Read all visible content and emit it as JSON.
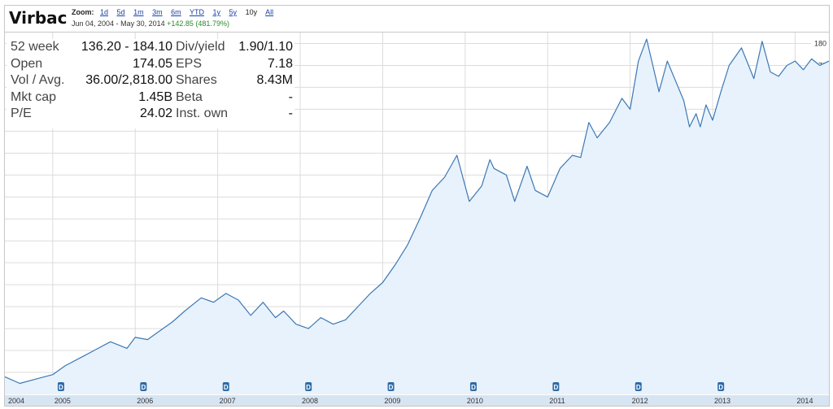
{
  "header": {
    "company": "Virbac",
    "zoom_label": "Zoom:",
    "zoom_options": [
      "1d",
      "5d",
      "1m",
      "3m",
      "6m",
      "YTD",
      "1y",
      "5y",
      "10y",
      "All"
    ],
    "zoom_selected": "10y",
    "date_start": "Jun 04, 2004",
    "date_sep": "-",
    "date_end": "May 30, 2014",
    "change": "+142.85 (481.79%)"
  },
  "stats": [
    {
      "label1": "52 week",
      "value1": "136.20 - 184.10",
      "label2": "Div/yield",
      "value2": "1.90/1.10"
    },
    {
      "label1": "Open",
      "value1": "174.05",
      "label2": "EPS",
      "value2": "7.18"
    },
    {
      "label1": "Vol / Avg.",
      "value1": "36.00/2,818.00",
      "label2": "Shares",
      "value2": "8.43M"
    },
    {
      "label1": "Mkt cap",
      "value1": "1.45B",
      "label2": "Beta",
      "value2": "-"
    },
    {
      "label1": "P/E",
      "value1": "24.02",
      "label2": "Inst. own",
      "value2": "-"
    }
  ],
  "colors": {
    "line": "#3c78b4",
    "fill": "#e8f2fc",
    "grid": "#dcdcdc",
    "marker": "#2d6aa8",
    "axisband": "#d7e4f2"
  },
  "chart_data": {
    "type": "area",
    "title": "",
    "xlabel": "",
    "ylabel": "",
    "xlim": [
      2004.42,
      2014.41
    ],
    "ylim": [
      20,
      185
    ],
    "yticks": [
      30,
      40,
      50,
      60,
      70,
      80,
      90,
      100,
      110,
      120,
      130,
      140,
      150,
      160,
      170,
      180
    ],
    "xticks": [
      "2004",
      "2005",
      "2006",
      "2007",
      "2008",
      "2009",
      "2010",
      "2011",
      "2012",
      "2013",
      "2014"
    ],
    "grid": true,
    "dividend_markers": [
      {
        "x": 2005.1,
        "label": "D"
      },
      {
        "x": 2006.1,
        "label": "D"
      },
      {
        "x": 2007.1,
        "label": "D"
      },
      {
        "x": 2008.1,
        "label": "D"
      },
      {
        "x": 2009.1,
        "label": "D"
      },
      {
        "x": 2010.1,
        "label": "D"
      },
      {
        "x": 2011.1,
        "label": "D"
      },
      {
        "x": 2012.1,
        "label": "D"
      },
      {
        "x": 2013.1,
        "label": "D"
      }
    ],
    "x": [
      2004.42,
      2004.6,
      2004.8,
      2005.0,
      2005.15,
      2005.35,
      2005.5,
      2005.7,
      2005.9,
      2006.0,
      2006.15,
      2006.3,
      2006.45,
      2006.6,
      2006.8,
      2006.95,
      2007.1,
      2007.25,
      2007.4,
      2007.55,
      2007.7,
      2007.8,
      2007.95,
      2008.1,
      2008.25,
      2008.4,
      2008.55,
      2008.7,
      2008.85,
      2009.0,
      2009.15,
      2009.3,
      2009.45,
      2009.6,
      2009.75,
      2009.9,
      2010.05,
      2010.2,
      2010.3,
      2010.35,
      2010.5,
      2010.6,
      2010.75,
      2010.85,
      2011.0,
      2011.15,
      2011.3,
      2011.4,
      2011.5,
      2011.6,
      2011.75,
      2011.9,
      2012.0,
      2012.1,
      2012.2,
      2012.35,
      2012.45,
      2012.55,
      2012.65,
      2012.72,
      2012.8,
      2012.85,
      2012.92,
      2013.0,
      2013.1,
      2013.2,
      2013.35,
      2013.5,
      2013.6,
      2013.7,
      2013.8,
      2013.9,
      2014.0,
      2014.1,
      2014.2,
      2014.3,
      2014.41
    ],
    "values": [
      28,
      25,
      27,
      29,
      33,
      37,
      40,
      44,
      41,
      46,
      45,
      49,
      53,
      58,
      64,
      62,
      66,
      63,
      56,
      62,
      55,
      58,
      52,
      50,
      55,
      52,
      54,
      60,
      66,
      71,
      79,
      88,
      100,
      113,
      119,
      129,
      108,
      115,
      127,
      123,
      120,
      108,
      124,
      113,
      110,
      123,
      129,
      128,
      144,
      137,
      144,
      155,
      150,
      172,
      182,
      158,
      172,
      163,
      154,
      142,
      148,
      142,
      152,
      145,
      158,
      170,
      178,
      164,
      181,
      167,
      165,
      170,
      172,
      168,
      173,
      170,
      172
    ]
  }
}
